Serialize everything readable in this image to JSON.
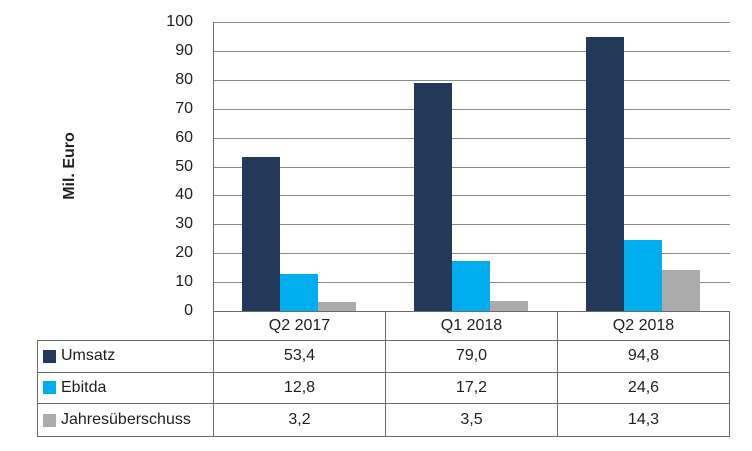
{
  "chart_data": {
    "type": "bar",
    "title": "",
    "xlabel": "",
    "ylabel": "Mil. Euro",
    "categories": [
      "Q2 2017",
      "Q1 2018",
      "Q2 2018"
    ],
    "series": [
      {
        "name": "Umsatz",
        "color": "#24395A",
        "values": [
          53.4,
          79.0,
          94.8
        ],
        "display": [
          "53,4",
          "79,0",
          "94,8"
        ]
      },
      {
        "name": "Ebitda",
        "color": "#00AEEF",
        "values": [
          12.8,
          17.2,
          24.6
        ],
        "display": [
          "12,8",
          "17,2",
          "24,6"
        ]
      },
      {
        "name": "Jahresüberschuss",
        "color": "#ABABAB",
        "values": [
          3.2,
          3.5,
          14.3
        ],
        "display": [
          "3,2",
          "3,5",
          "14,3"
        ]
      }
    ],
    "ylim": [
      0,
      100
    ],
    "ytick_step": 10,
    "grid": true,
    "legend_position": "table-rows-below-chart"
  },
  "colors": {
    "background": "#FFFFFF",
    "gridline": "#8C8C8C",
    "table_border": "#6B6B6B",
    "text": "#1F1F1F"
  }
}
